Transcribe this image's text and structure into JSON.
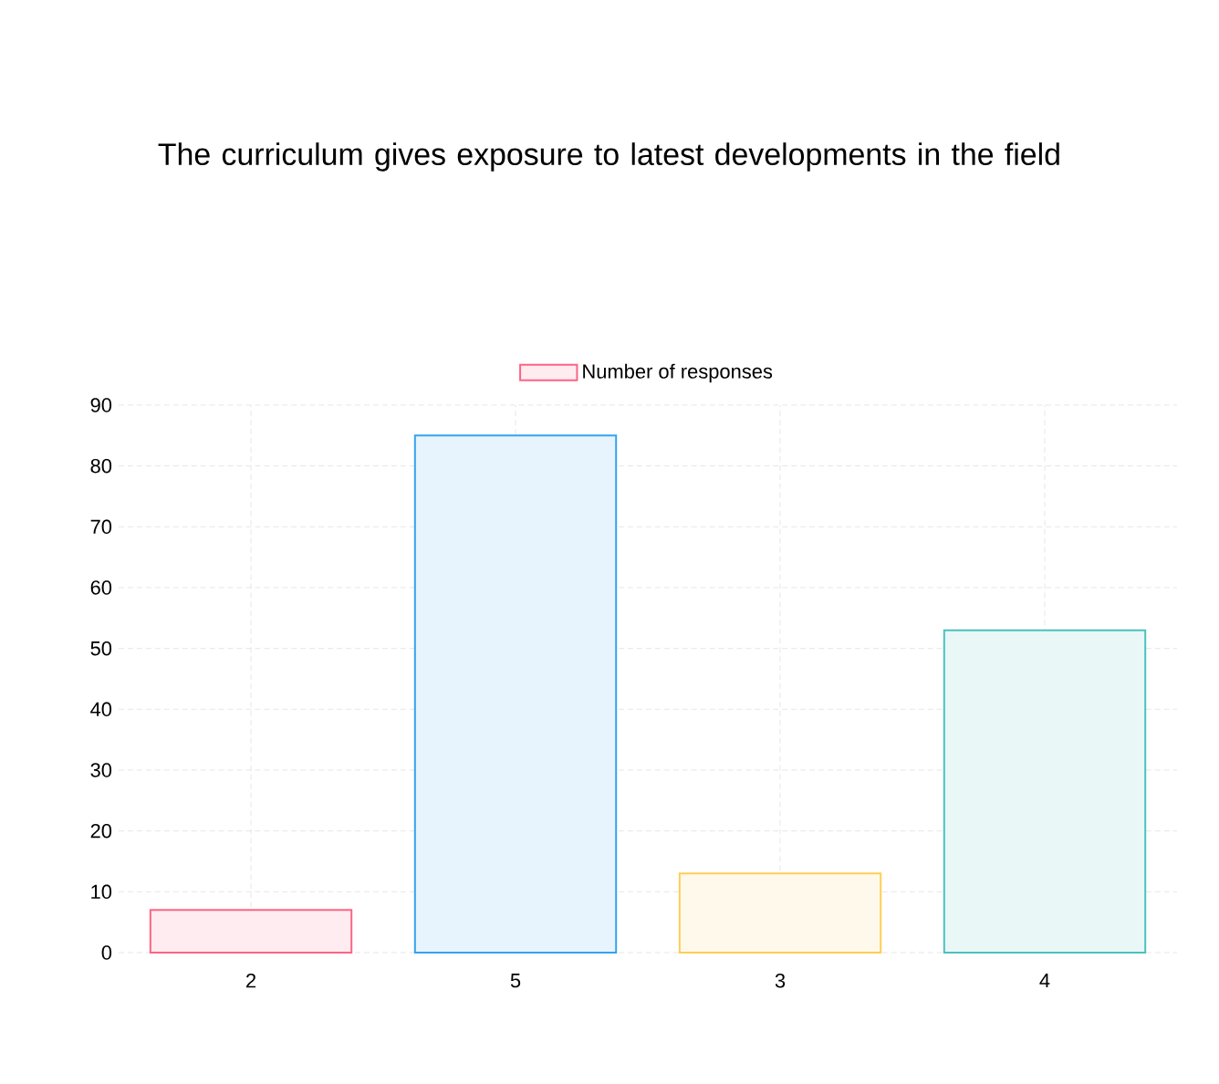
{
  "chart_data": {
    "type": "bar",
    "title": "The curriculum gives exposure to latest developments in the field",
    "categories": [
      "2",
      "5",
      "3",
      "4"
    ],
    "series": [
      {
        "name": "Number of responses",
        "values": [
          7,
          85,
          13,
          53
        ],
        "colors": [
          "#ff6384",
          "#36a2eb",
          "#ffcd56",
          "#4bc0c0"
        ]
      }
    ],
    "ylim": [
      0,
      90
    ],
    "yticks": [
      0,
      10,
      20,
      30,
      40,
      50,
      60,
      70,
      80,
      90
    ],
    "grid": true,
    "legend": "top"
  }
}
